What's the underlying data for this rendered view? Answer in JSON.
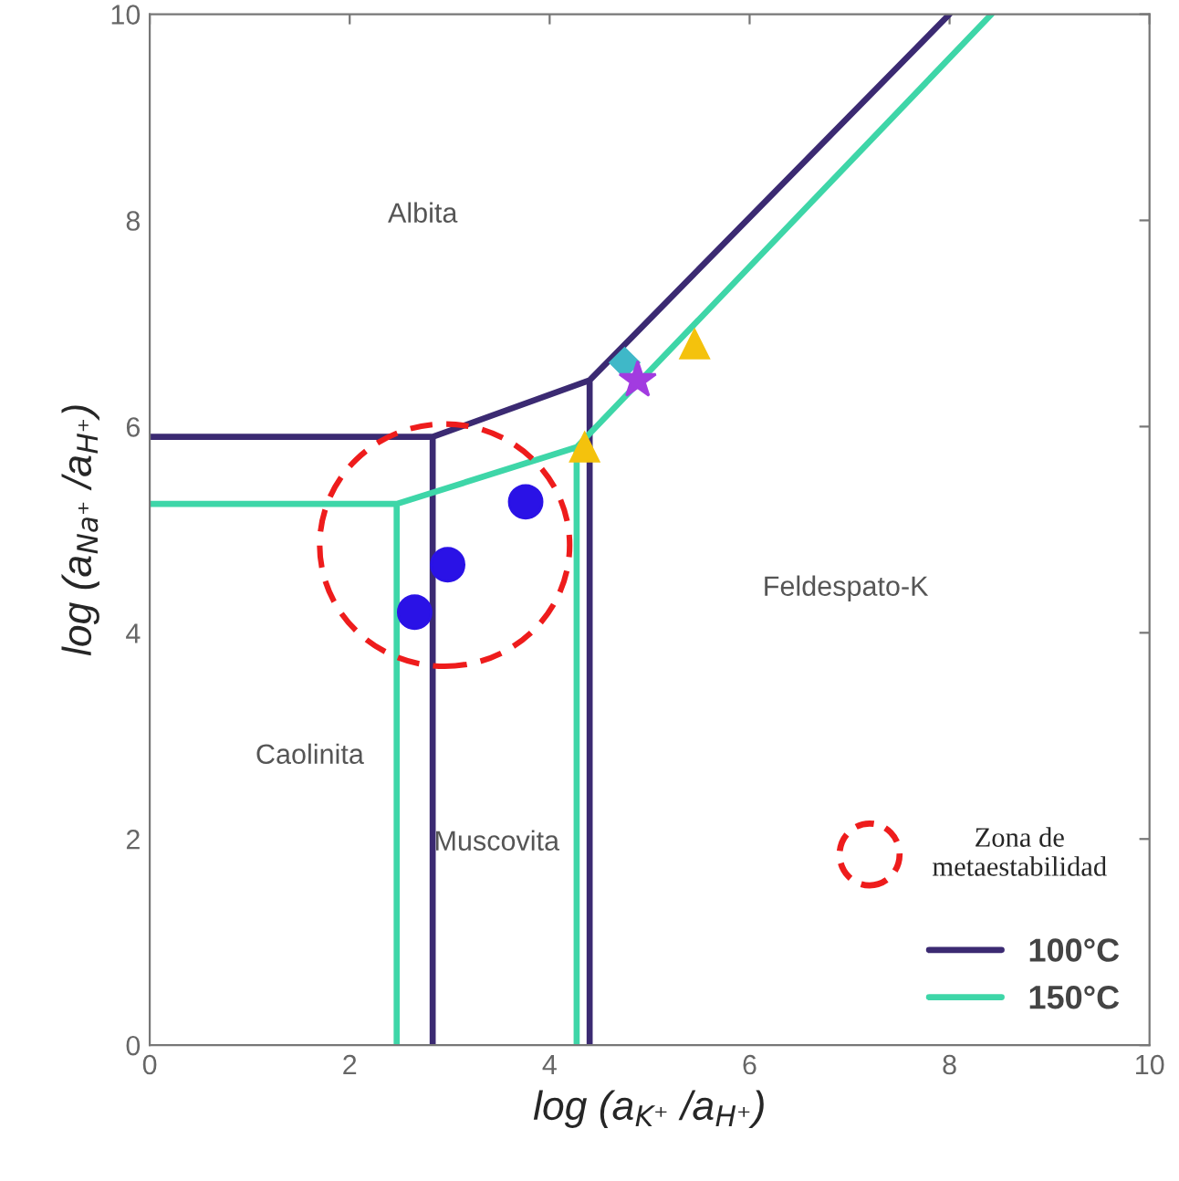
{
  "chart_data": {
    "type": "line",
    "xlabel": "log (a$_{K⁺}$ /a$_{H⁺}$)",
    "ylabel": "log (a$_{Na⁺}$ /a$_{H⁺}$)",
    "xlim": [
      0,
      10
    ],
    "ylim": [
      0,
      10
    ],
    "xticks": [
      0,
      2,
      4,
      6,
      8,
      10
    ],
    "yticks": [
      0,
      2,
      4,
      6,
      8,
      10
    ],
    "grid": false,
    "legend": "bottom right",
    "series": [
      {
        "name": "100°C",
        "color": "#3b2a72",
        "x": [
          0,
          2.83,
          2.83,
          null,
          2.83,
          4.4,
          4.4,
          null,
          4.4,
          8.0
        ],
        "values": [
          5.9,
          5.9,
          0,
          null,
          5.9,
          6.45,
          0,
          null,
          6.45,
          10
        ]
      },
      {
        "name": "150°C",
        "color": "#3ed6a8",
        "x": [
          0,
          2.47,
          2.47,
          null,
          2.47,
          4.27,
          4.27,
          null,
          4.27,
          8.42
        ],
        "values": [
          5.25,
          5.25,
          0,
          null,
          5.25,
          5.8,
          0,
          null,
          5.8,
          10
        ]
      },
      {
        "type": "scatter",
        "marker": "circle",
        "color": "#2a12e6",
        "x": [
          2.65,
          2.98,
          3.76
        ],
        "values": [
          4.2,
          4.66,
          5.27
        ]
      },
      {
        "type": "scatter",
        "marker": "triangle",
        "color": "#f4c20d",
        "x": [
          4.35,
          5.45
        ],
        "values": [
          5.8,
          6.8
        ]
      },
      {
        "type": "scatter",
        "marker": "diamond",
        "color": "#3fb8c8",
        "x": [
          4.75
        ],
        "values": [
          6.62
        ]
      },
      {
        "type": "scatter",
        "marker": "star",
        "color": "#a23be0",
        "x": [
          4.88
        ],
        "values": [
          6.45
        ]
      }
    ],
    "annotations": [
      "Albita",
      "Feldespato-K",
      "Caolinita",
      "Muscovita",
      "Zona de metaestabilidad"
    ]
  }
}
